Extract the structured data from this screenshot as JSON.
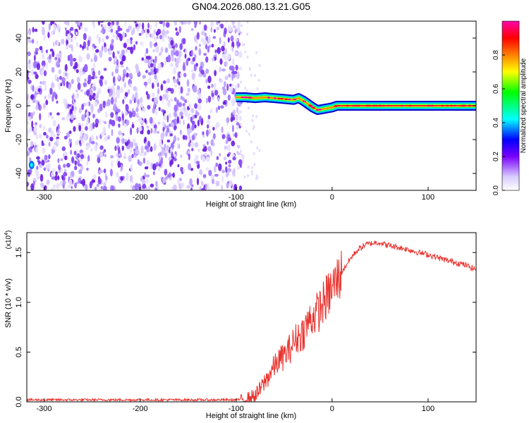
{
  "figure": {
    "title": "GN04.2026.080.13.21.G05"
  },
  "chart_data": [
    {
      "type": "heatmap",
      "title": "GN04.2026.080.13.21.G05",
      "xlabel": "Height of straight line (km)",
      "ylabel": "Frequency (Hz)",
      "xlim": [
        -318,
        150
      ],
      "ylim": [
        -50,
        50
      ],
      "xticks": [
        -300,
        -200,
        -100,
        0,
        100
      ],
      "yticks": [
        -40,
        -20,
        0,
        20,
        40
      ],
      "noise_region_x": [
        -318,
        -95
      ],
      "noise_sparse_x": [
        -95,
        -75
      ],
      "ridge": {
        "x": [
          -100,
          -90,
          -80,
          -70,
          -60,
          -50,
          -40,
          -35,
          -30,
          -25,
          -20,
          -15,
          -10,
          -5,
          0,
          5,
          10,
          20,
          30,
          40,
          50,
          60,
          70,
          80,
          90,
          100,
          110,
          120,
          130,
          140,
          150
        ],
        "frequency": [
          5,
          5,
          4.5,
          5,
          4.5,
          4,
          3.5,
          4.5,
          3,
          1,
          -1,
          -2.5,
          -2,
          -1.5,
          -1,
          0,
          0,
          0,
          0,
          0,
          0,
          0,
          0,
          0,
          0,
          0,
          0,
          0,
          0,
          0,
          0
        ]
      },
      "colorbar": {
        "label": "Normalized spectral amplitude",
        "range": [
          0,
          1
        ],
        "ticks": [
          "0.0",
          "0.2",
          "0.4",
          "0.6",
          "0.8"
        ],
        "colors": [
          "#ffffff",
          "#d9ccff",
          "#7a00ff",
          "#0000ff",
          "#00ffff",
          "#00ff00",
          "#ffff00",
          "#ff8000",
          "#ff0000",
          "#ff00aa"
        ]
      }
    },
    {
      "type": "line",
      "title": "",
      "xlabel": "Height of straight line (km)",
      "ylabel": "SNR (10 * v/v)",
      "scale_label": "(x10",
      "scale_exp": "4",
      "xlim": [
        -318,
        150
      ],
      "ylim": [
        0,
        1.7
      ],
      "xticks": [
        -300,
        -200,
        -100,
        0,
        100
      ],
      "yticks": [
        "0.0",
        "0.5",
        "1.0",
        "1.5"
      ],
      "color": "#e8312c",
      "series": [
        {
          "name": "SNR",
          "x": [
            -318,
            -250,
            -200,
            -150,
            -100,
            -90,
            -80,
            -75,
            -70,
            -65,
            -60,
            -55,
            -50,
            -45,
            -40,
            -35,
            -30,
            -25,
            -20,
            -15,
            -10,
            -5,
            0,
            5,
            10,
            15,
            20,
            25,
            30,
            35,
            40,
            45,
            50,
            55,
            60,
            70,
            80,
            90,
            100,
            110,
            120,
            130,
            140,
            150
          ],
          "values": [
            0.02,
            0.02,
            0.02,
            0.02,
            0.02,
            0.03,
            0.06,
            0.12,
            0.2,
            0.28,
            0.36,
            0.42,
            0.46,
            0.52,
            0.6,
            0.66,
            0.7,
            0.8,
            0.86,
            0.9,
            0.98,
            1.06,
            1.14,
            1.22,
            1.3,
            1.38,
            1.45,
            1.51,
            1.55,
            1.58,
            1.59,
            1.6,
            1.6,
            1.58,
            1.57,
            1.55,
            1.53,
            1.5,
            1.48,
            1.45,
            1.42,
            1.4,
            1.37,
            1.33
          ]
        }
      ]
    }
  ]
}
